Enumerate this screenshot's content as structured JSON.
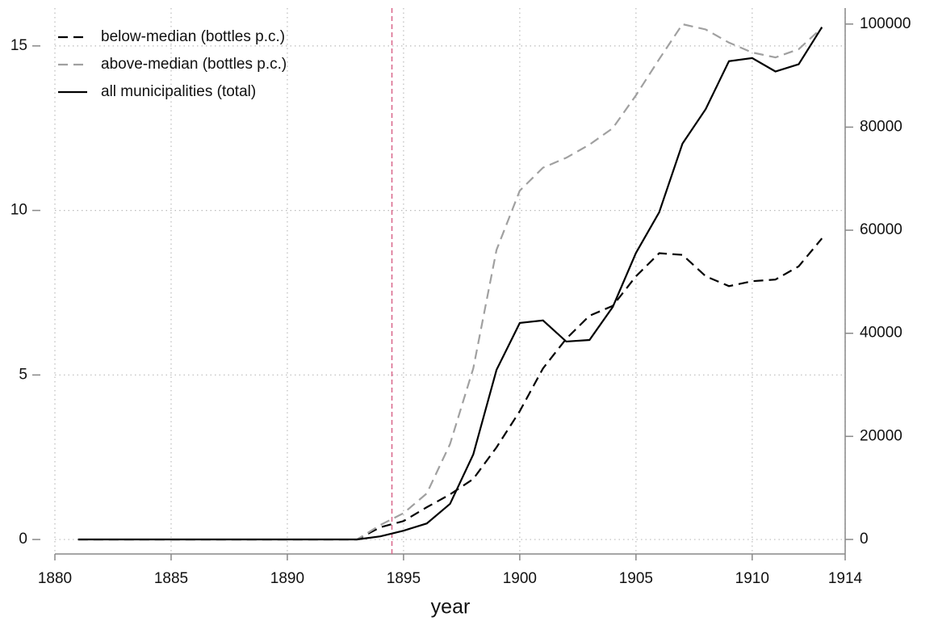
{
  "chart_data": {
    "type": "line",
    "x_label": "year",
    "x": [
      1881,
      1882,
      1883,
      1884,
      1885,
      1886,
      1887,
      1888,
      1889,
      1890,
      1891,
      1892,
      1893,
      1894,
      1895,
      1896,
      1897,
      1898,
      1899,
      1900,
      1901,
      1902,
      1903,
      1904,
      1905,
      1906,
      1907,
      1908,
      1909,
      1910,
      1911,
      1912,
      1913
    ],
    "series": [
      {
        "name": "below-median (bottles p.c.)",
        "color": "#000000",
        "linestyle": "dashed",
        "axis": "y",
        "values": [
          0,
          0,
          0,
          0,
          0,
          0,
          0,
          0,
          0,
          0,
          0,
          0,
          0,
          0.37,
          0.56,
          0.98,
          1.37,
          1.84,
          2.8,
          3.9,
          5.2,
          6.1,
          6.8,
          7.1,
          8.0,
          8.7,
          8.65,
          8.0,
          7.7,
          7.85,
          7.9,
          8.3,
          9.15
        ]
      },
      {
        "name": "above-median (bottles p.c.)",
        "color": "#a0a0a0",
        "linestyle": "dashed",
        "axis": "y",
        "values": [
          0,
          0,
          0,
          0,
          0,
          0,
          0,
          0,
          0,
          0,
          0,
          0,
          0,
          0.44,
          0.8,
          1.4,
          2.9,
          5.2,
          8.8,
          10.6,
          11.3,
          11.6,
          12.0,
          12.5,
          13.5,
          14.6,
          15.66,
          15.5,
          15.1,
          14.8,
          14.65,
          14.9,
          15.55
        ]
      },
      {
        "name": "all municipalities (total)",
        "color": "#000000",
        "linestyle": "solid",
        "axis": "y2",
        "values": [
          0,
          0,
          0,
          0,
          0,
          0,
          0,
          0,
          0,
          0,
          0,
          0,
          0,
          600,
          1700,
          3100,
          6900,
          16500,
          32900,
          42000,
          42500,
          38400,
          38700,
          45100,
          55600,
          63500,
          76800,
          83500,
          92800,
          93400,
          90800,
          92200,
          99400
        ]
      }
    ],
    "xlim": [
      1880,
      1914
    ],
    "xticks": [
      1880,
      1885,
      1890,
      1895,
      1900,
      1905,
      1910,
      1914
    ],
    "ylim": [
      -0.44,
      16.15
    ],
    "yticks": [
      0,
      5,
      10,
      15
    ],
    "y2lim": [
      -2820,
      103100
    ],
    "y2ticks": [
      0,
      20000,
      40000,
      60000,
      80000,
      100000
    ],
    "vline": {
      "x": 1894.5,
      "color": "#d9668a"
    },
    "grid": true,
    "legend": "top-left"
  }
}
